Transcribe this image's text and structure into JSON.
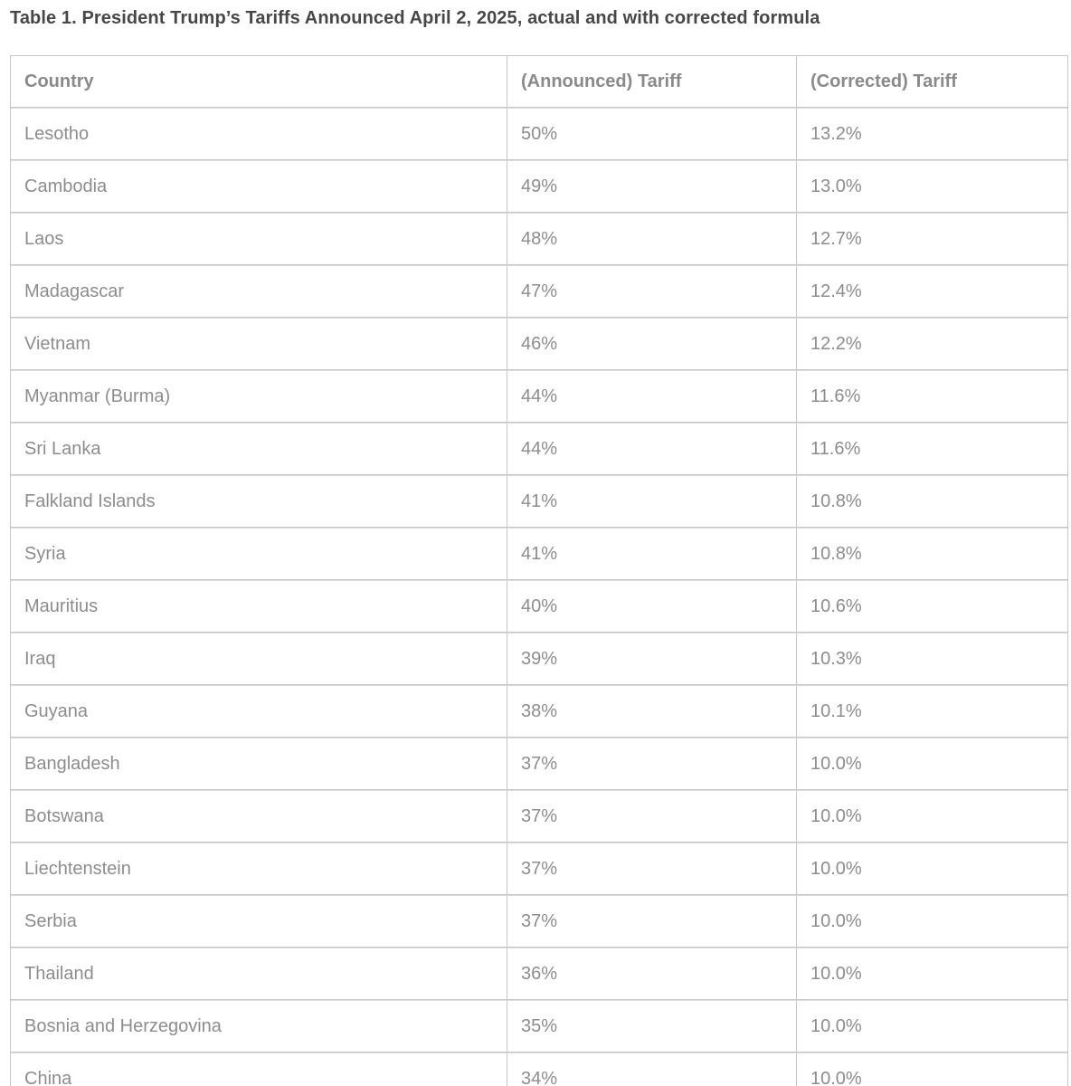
{
  "title": "Table 1. President Trump’s Tariffs Announced April 2, 2025, actual and with corrected formula",
  "table": {
    "columns": [
      "Country",
      "(Announced) Tariff",
      "(Corrected) Tariff"
    ],
    "rows": [
      [
        "Lesotho",
        "50%",
        "13.2%"
      ],
      [
        "Cambodia",
        "49%",
        "13.0%"
      ],
      [
        "Laos",
        "48%",
        "12.7%"
      ],
      [
        "Madagascar",
        "47%",
        "12.4%"
      ],
      [
        "Vietnam",
        "46%",
        "12.2%"
      ],
      [
        "Myanmar (Burma)",
        "44%",
        "11.6%"
      ],
      [
        "Sri Lanka",
        "44%",
        "11.6%"
      ],
      [
        "Falkland Islands",
        "41%",
        "10.8%"
      ],
      [
        "Syria",
        "41%",
        "10.8%"
      ],
      [
        "Mauritius",
        "40%",
        "10.6%"
      ],
      [
        "Iraq",
        "39%",
        "10.3%"
      ],
      [
        "Guyana",
        "38%",
        "10.1%"
      ],
      [
        "Bangladesh",
        "37%",
        "10.0%"
      ],
      [
        "Botswana",
        "37%",
        "10.0%"
      ],
      [
        "Liechtenstein",
        "37%",
        "10.0%"
      ],
      [
        "Serbia",
        "37%",
        "10.0%"
      ],
      [
        "Thailand",
        "36%",
        "10.0%"
      ],
      [
        "Bosnia and Herzegovina",
        "35%",
        "10.0%"
      ],
      [
        "China",
        "34%",
        "10.0%"
      ]
    ]
  },
  "colors": {
    "title_text": "#474747",
    "cell_text": "#8d8d8d",
    "border": "#c6c6c6",
    "background": "#ffffff"
  }
}
